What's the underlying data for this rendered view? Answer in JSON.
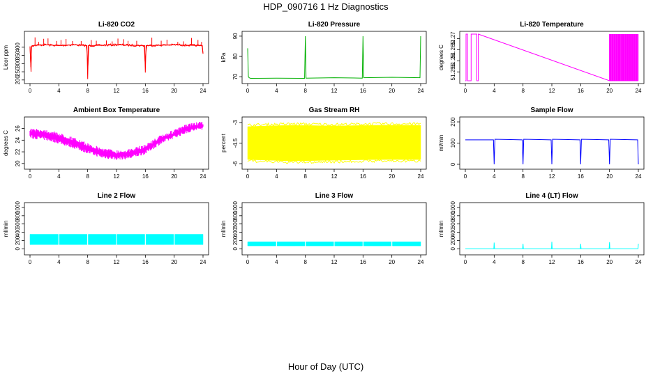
{
  "figure": {
    "title": "HDP_090716  1 Hz Diagnostics",
    "xlabel": "Hour of Day (UTC)"
  },
  "chart_data": [
    {
      "type": "line",
      "title": "Li-820 CO2",
      "ylabel": "Licor ppm",
      "color": "#ff0000",
      "xlim": [
        0,
        24
      ],
      "ylim": [
        195,
        480
      ],
      "xticks": [
        0,
        4,
        8,
        12,
        16,
        20,
        24
      ],
      "yticks": [
        200,
        250,
        300,
        350,
        400
      ],
      "series": [
        {
          "name": "CO2",
          "x": [
            0,
            0.15,
            0.2,
            0.3,
            1,
            2,
            4,
            6,
            7.9,
            8,
            8.1,
            10,
            12,
            14,
            15.9,
            16,
            16.1,
            18,
            20,
            22,
            23.9,
            24
          ],
          "y": [
            405,
            250,
            405,
            410,
            412,
            415,
            410,
            415,
            410,
            205,
            410,
            412,
            415,
            412,
            410,
            245,
            410,
            412,
            415,
            412,
            410,
            360
          ]
        }
      ],
      "spikes_up_at": [
        0.7,
        1.2,
        1.9,
        2.5,
        3.7,
        4.3,
        5.0,
        5.9,
        7.1,
        8.5,
        9.2,
        10.6,
        11.4,
        12.2,
        13.0,
        13.6,
        14.8,
        16.9,
        18.2,
        19.0,
        20.5,
        21.3,
        22.4,
        23.3,
        23.8
      ],
      "spike_top": 460
    },
    {
      "type": "line",
      "title": "Li-820 Pressure",
      "ylabel": "kPa",
      "color": "#00b000",
      "xlim": [
        0,
        24
      ],
      "ylim": [
        68,
        91
      ],
      "xticks": [
        0,
        4,
        8,
        12,
        16,
        20,
        24
      ],
      "yticks": [
        70,
        80,
        90
      ],
      "series": [
        {
          "name": "Pressure",
          "x": [
            0,
            0.1,
            0.2,
            0.4,
            4,
            7.9,
            8,
            8.1,
            12,
            15.9,
            16,
            16.1,
            20,
            23.9,
            24
          ],
          "y": [
            84,
            70,
            69.5,
            69.2,
            69.3,
            69.2,
            90,
            69.3,
            69.5,
            69.3,
            90,
            69.5,
            69.7,
            69.5,
            90
          ]
        }
      ]
    },
    {
      "type": "line",
      "title": "Li-820 Temperature",
      "ylabel": "degrees C",
      "color": "#ff00ff",
      "xlim": [
        0,
        24
      ],
      "ylim": [
        51.251,
        51.272
      ],
      "xticks": [
        0,
        4,
        8,
        12,
        16,
        20,
        24
      ],
      "yticks": [
        51.255,
        51.26,
        51.265,
        51.27
      ],
      "series": [
        {
          "name": "Temperature",
          "x": [
            0,
            0.1,
            0.1,
            0.3,
            0.3,
            0.8,
            0.8,
            1.6,
            1.6,
            1.8,
            1.8,
            20,
            24
          ],
          "y": [
            51.251,
            51.251,
            51.272,
            51.272,
            51.251,
            51.251,
            51.272,
            51.272,
            51.251,
            51.251,
            51.272,
            51.251,
            51.251
          ]
        }
      ],
      "dense_toggle_start": 20,
      "dense_toggle_end": 24
    },
    {
      "type": "line",
      "title": "Ambient Box Temperature",
      "ylabel": "degrees C",
      "color": "#ff00ff",
      "xlim": [
        0,
        24
      ],
      "ylim": [
        19.5,
        27.5
      ],
      "xticks": [
        0,
        4,
        8,
        12,
        16,
        20,
        24
      ],
      "yticks": [
        20,
        22,
        24,
        26
      ],
      "series": [
        {
          "name": "upper",
          "x": [
            0,
            2,
            4,
            6,
            8,
            10,
            12,
            14,
            16,
            18,
            20,
            22,
            24
          ],
          "y": [
            26,
            25.9,
            25.3,
            24.5,
            23.5,
            22.7,
            22.3,
            22.5,
            23.3,
            24.8,
            25.8,
            26.9,
            27.2
          ]
        },
        {
          "name": "lower",
          "x": [
            0,
            2,
            4,
            6,
            8,
            10,
            12,
            14,
            16,
            18,
            20,
            22,
            24
          ],
          "y": [
            24.3,
            24.0,
            23.4,
            22.6,
            21.7,
            20.9,
            20.6,
            20.8,
            21.6,
            23.2,
            24.3,
            25.3,
            25.8
          ]
        }
      ]
    },
    {
      "type": "area",
      "title": "Gas Stream RH",
      "ylabel": "percent",
      "color": "#ffff00",
      "xlim": [
        0,
        24
      ],
      "ylim": [
        -6.2,
        -2.8
      ],
      "xticks": [
        0,
        4,
        8,
        12,
        16,
        20,
        24
      ],
      "yticks": [
        -6.0,
        -4.5,
        -3.0
      ],
      "series": [
        {
          "name": "upper",
          "x": [
            0,
            6,
            12,
            18,
            24
          ],
          "y": [
            -3.3,
            -3.2,
            -3.25,
            -3.2,
            -3.2
          ]
        },
        {
          "name": "lower",
          "x": [
            0,
            6,
            12,
            18,
            24
          ],
          "y": [
            -5.7,
            -5.8,
            -5.75,
            -5.7,
            -5.7
          ]
        }
      ]
    },
    {
      "type": "line",
      "title": "Sample Flow",
      "ylabel": "ml/min",
      "color": "#0000ff",
      "xlim": [
        0,
        24
      ],
      "ylim": [
        -10,
        210
      ],
      "xticks": [
        0,
        4,
        8,
        12,
        16,
        20,
        24
      ],
      "yticks": [
        0,
        100,
        200
      ],
      "series": [
        {
          "name": "Flow",
          "x": [
            0,
            3.9,
            4,
            4.1,
            7.9,
            8,
            8.1,
            11.9,
            12,
            12.1,
            15.9,
            16,
            16.1,
            19.9,
            20,
            20.1,
            23.9,
            24
          ],
          "y": [
            115,
            115,
            0,
            118,
            115,
            0,
            118,
            115,
            0,
            118,
            115,
            0,
            118,
            115,
            0,
            118,
            115,
            0
          ]
        }
      ]
    },
    {
      "type": "area",
      "title": "Line 2 Flow",
      "ylabel": "ml/min",
      "color": "#00ffff",
      "xlim": [
        0,
        24
      ],
      "ylim": [
        -80,
        1050
      ],
      "xticks": [
        0,
        4,
        8,
        12,
        16,
        20,
        24
      ],
      "yticks": [
        0,
        200,
        400,
        600,
        800,
        1000
      ],
      "series": [
        {
          "name": "upper",
          "x": [
            0,
            24
          ],
          "y": [
            350,
            350
          ]
        },
        {
          "name": "lower",
          "x": [
            0,
            24
          ],
          "y": [
            100,
            100
          ]
        }
      ],
      "gaps_at": [
        4,
        8,
        12,
        16,
        20
      ]
    },
    {
      "type": "area",
      "title": "Line 3 Flow",
      "ylabel": "ml/min",
      "color": "#00ffff",
      "xlim": [
        0,
        24
      ],
      "ylim": [
        -80,
        1050
      ],
      "xticks": [
        0,
        4,
        8,
        12,
        16,
        20,
        24
      ],
      "yticks": [
        0,
        200,
        400,
        600,
        800,
        1000
      ],
      "series": [
        {
          "name": "upper",
          "x": [
            0,
            24
          ],
          "y": [
            170,
            170
          ]
        },
        {
          "name": "lower",
          "x": [
            0,
            24
          ],
          "y": [
            70,
            70
          ]
        }
      ],
      "gaps_at": [
        4,
        8,
        12,
        16,
        20
      ]
    },
    {
      "type": "line",
      "title": "Line 4 (LT) Flow",
      "ylabel": "ml/min",
      "color": "#00ffff",
      "xlim": [
        0,
        24
      ],
      "ylim": [
        -80,
        1050
      ],
      "xticks": [
        0,
        4,
        8,
        12,
        16,
        20,
        24
      ],
      "yticks": [
        0,
        200,
        400,
        600,
        800,
        1000
      ],
      "series": [
        {
          "name": "Flow",
          "x": [
            0,
            3.95,
            4,
            4.05,
            7.95,
            8,
            8.05,
            11.95,
            12,
            12.05,
            15.95,
            16,
            16.05,
            19.95,
            20,
            20.05,
            23.95,
            24
          ],
          "y": [
            0,
            0,
            150,
            0,
            0,
            120,
            0,
            0,
            170,
            0,
            0,
            120,
            0,
            0,
            160,
            0,
            0,
            120
          ]
        }
      ]
    }
  ]
}
